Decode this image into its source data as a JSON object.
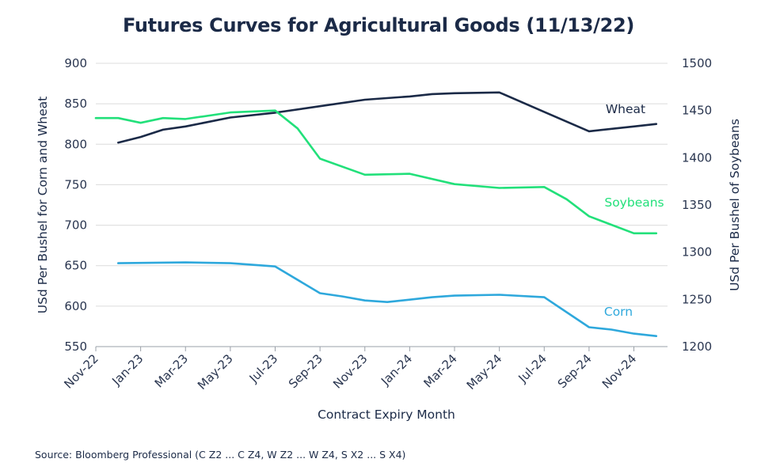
{
  "chart_data": {
    "type": "line",
    "title": "Futures Curves for Agricultural Goods (11/13/22)",
    "xlabel": "Contract Expiry Month",
    "ylabel_left": "USd Per Bushel for Corn and Wheat",
    "ylabel_right": "USd Per Bushel of Soybeans",
    "y_left_lim": [
      550,
      900
    ],
    "y_left_ticks": [
      550,
      600,
      650,
      700,
      750,
      800,
      850,
      900
    ],
    "y_right_lim": [
      1200,
      1500
    ],
    "y_right_ticks": [
      1200,
      1250,
      1300,
      1350,
      1400,
      1450,
      1500
    ],
    "x_tick_labels": [
      "Nov-22",
      "Jan-23",
      "Mar-23",
      "May-23",
      "Jul-23",
      "Sep-23",
      "Nov-23",
      "Jan-24",
      "Mar-24",
      "May-24",
      "Jul-24",
      "Sep-24",
      "Nov-24"
    ],
    "grid": true,
    "source": "Source: Bloomberg Professional (C Z2 ... C Z4, W Z2 ... W Z4, S X2 ... S X4)",
    "series": [
      {
        "name": "Wheat",
        "axis": "left",
        "color": "#1b2a47",
        "x": [
          "Dec-22",
          "Jan-23",
          "Feb-23",
          "Mar-23",
          "May-23",
          "Jul-23",
          "Sep-23",
          "Nov-23",
          "Jan-24",
          "Feb-24",
          "Mar-24",
          "May-24",
          "Jul-24",
          "Sep-24",
          "Nov-24",
          "Dec-24"
        ],
        "values": [
          802,
          809,
          818,
          822,
          833,
          839,
          847,
          855,
          859,
          862,
          863,
          864,
          840,
          816,
          822,
          825
        ]
      },
      {
        "name": "Soybeans",
        "axis": "right",
        "color": "#22e07a",
        "x": [
          "Nov-22",
          "Dec-22",
          "Jan-23",
          "Feb-23",
          "Mar-23",
          "May-23",
          "Jul-23",
          "Aug-23",
          "Sep-23",
          "Nov-23",
          "Jan-24",
          "Mar-24",
          "May-24",
          "Jul-24",
          "Aug-24",
          "Sep-24",
          "Nov-24",
          "Dec-24"
        ],
        "values": [
          1442,
          1442,
          1437,
          1442,
          1441,
          1448,
          1450,
          1431,
          1399,
          1382,
          1383,
          1372,
          1368,
          1369,
          1356,
          1338,
          1320,
          1320
        ]
      },
      {
        "name": "Corn",
        "axis": "left",
        "color": "#2ea8dc",
        "x": [
          "Dec-22",
          "Mar-23",
          "May-23",
          "Jul-23",
          "Sep-23",
          "Oct-23",
          "Nov-23",
          "Dec-23",
          "Jan-24",
          "Feb-24",
          "Mar-24",
          "May-24",
          "Jul-24",
          "Sep-24",
          "Oct-24",
          "Nov-24",
          "Dec-24"
        ],
        "values": [
          653,
          654,
          653,
          649,
          616,
          612,
          607,
          605,
          608,
          611,
          613,
          614,
          611,
          574,
          571,
          566,
          563
        ]
      }
    ]
  }
}
